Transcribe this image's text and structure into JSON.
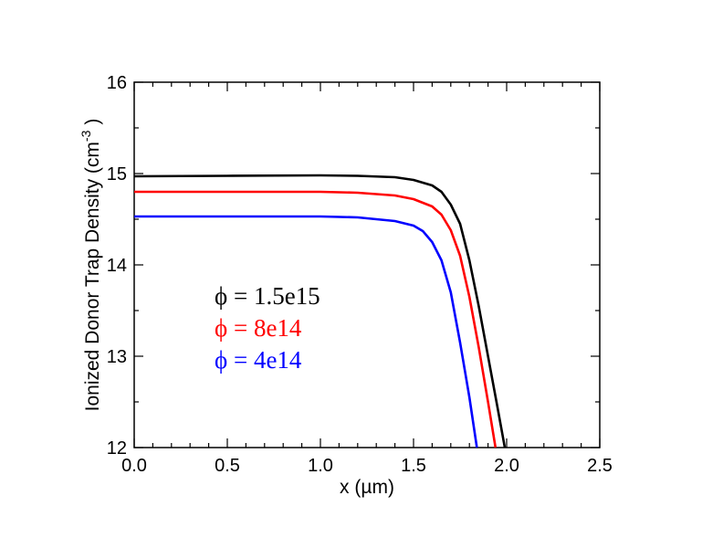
{
  "chart_data": {
    "type": "line",
    "title": "",
    "xlabel": "x (µm)",
    "ylabel": "Ionized Donor Trap Density (cm",
    "ylabel_sup": "-3",
    "ylabel_close": ")",
    "xlim": [
      0,
      2.5
    ],
    "ylim": [
      12,
      16
    ],
    "xticks": [
      "0.0",
      "0.5",
      "1.0",
      "1.5",
      "2.0",
      "2.5"
    ],
    "yticks": [
      "12",
      "13",
      "14",
      "15",
      "16"
    ],
    "grid": false,
    "legend_position": "center-left",
    "series": [
      {
        "name": "ϕ = 1.5e15",
        "color": "#000000",
        "x": [
          0,
          0.5,
          1.0,
          1.2,
          1.4,
          1.5,
          1.6,
          1.65,
          1.7,
          1.75,
          1.8,
          1.85,
          1.9,
          1.95,
          1.99
        ],
        "y": [
          14.97,
          14.975,
          14.98,
          14.975,
          14.96,
          14.93,
          14.87,
          14.8,
          14.66,
          14.45,
          14.05,
          13.55,
          13.0,
          12.45,
          12.0
        ]
      },
      {
        "name": "ϕ = 8e14",
        "color": "#ff0000",
        "x": [
          0,
          0.5,
          1.0,
          1.2,
          1.4,
          1.5,
          1.6,
          1.65,
          1.7,
          1.75,
          1.8,
          1.85,
          1.9,
          1.94
        ],
        "y": [
          14.8,
          14.8,
          14.8,
          14.79,
          14.76,
          14.72,
          14.64,
          14.55,
          14.38,
          14.1,
          13.65,
          13.1,
          12.5,
          12.0
        ]
      },
      {
        "name": "ϕ = 4e14",
        "color": "#0000ff",
        "x": [
          0,
          0.5,
          1.0,
          1.2,
          1.4,
          1.5,
          1.55,
          1.6,
          1.65,
          1.7,
          1.75,
          1.8,
          1.84
        ],
        "y": [
          14.53,
          14.53,
          14.53,
          14.52,
          14.48,
          14.43,
          14.37,
          14.25,
          14.05,
          13.7,
          13.15,
          12.55,
          12.0
        ]
      }
    ]
  }
}
